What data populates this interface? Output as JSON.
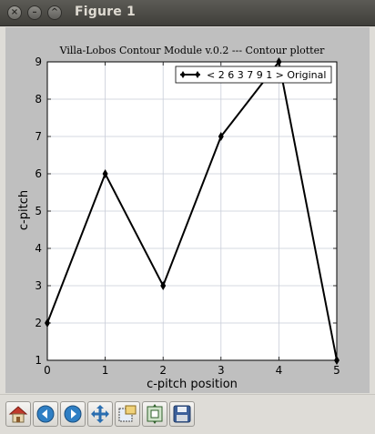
{
  "window": {
    "title": "Figure 1",
    "controls": [
      "close",
      "minimize",
      "maximize"
    ]
  },
  "toolbar": {
    "buttons": [
      {
        "name": "home-button",
        "icon": "home-icon"
      },
      {
        "name": "back-button",
        "icon": "arrow-left-icon"
      },
      {
        "name": "forward-button",
        "icon": "arrow-right-icon"
      },
      {
        "name": "pan-button",
        "icon": "move-arrows-icon"
      },
      {
        "name": "zoom-button",
        "icon": "zoom-rect-icon"
      },
      {
        "name": "subplots-button",
        "icon": "subplots-config-icon"
      },
      {
        "name": "save-button",
        "icon": "floppy-disk-icon"
      }
    ]
  },
  "chart_data": {
    "type": "line",
    "title": "Villa-Lobos Contour Module v.0.2 --- Contour plotter",
    "xlabel": "c-pitch position",
    "ylabel": "c-pitch",
    "x": [
      0,
      1,
      2,
      3,
      4,
      5
    ],
    "xticks": [
      "0",
      "1",
      "2",
      "3",
      "4",
      "5"
    ],
    "yticks": [
      "1",
      "2",
      "3",
      "4",
      "5",
      "6",
      "7",
      "8",
      "9"
    ],
    "xlim": [
      0,
      5
    ],
    "ylim": [
      1,
      9
    ],
    "grid": true,
    "legend_position": "top-right",
    "series": [
      {
        "name": "< 2 6 3 7 9 1 > Original",
        "values": [
          2,
          6,
          3,
          7,
          9,
          1
        ],
        "color": "#000000",
        "marker": "diamond"
      }
    ]
  }
}
